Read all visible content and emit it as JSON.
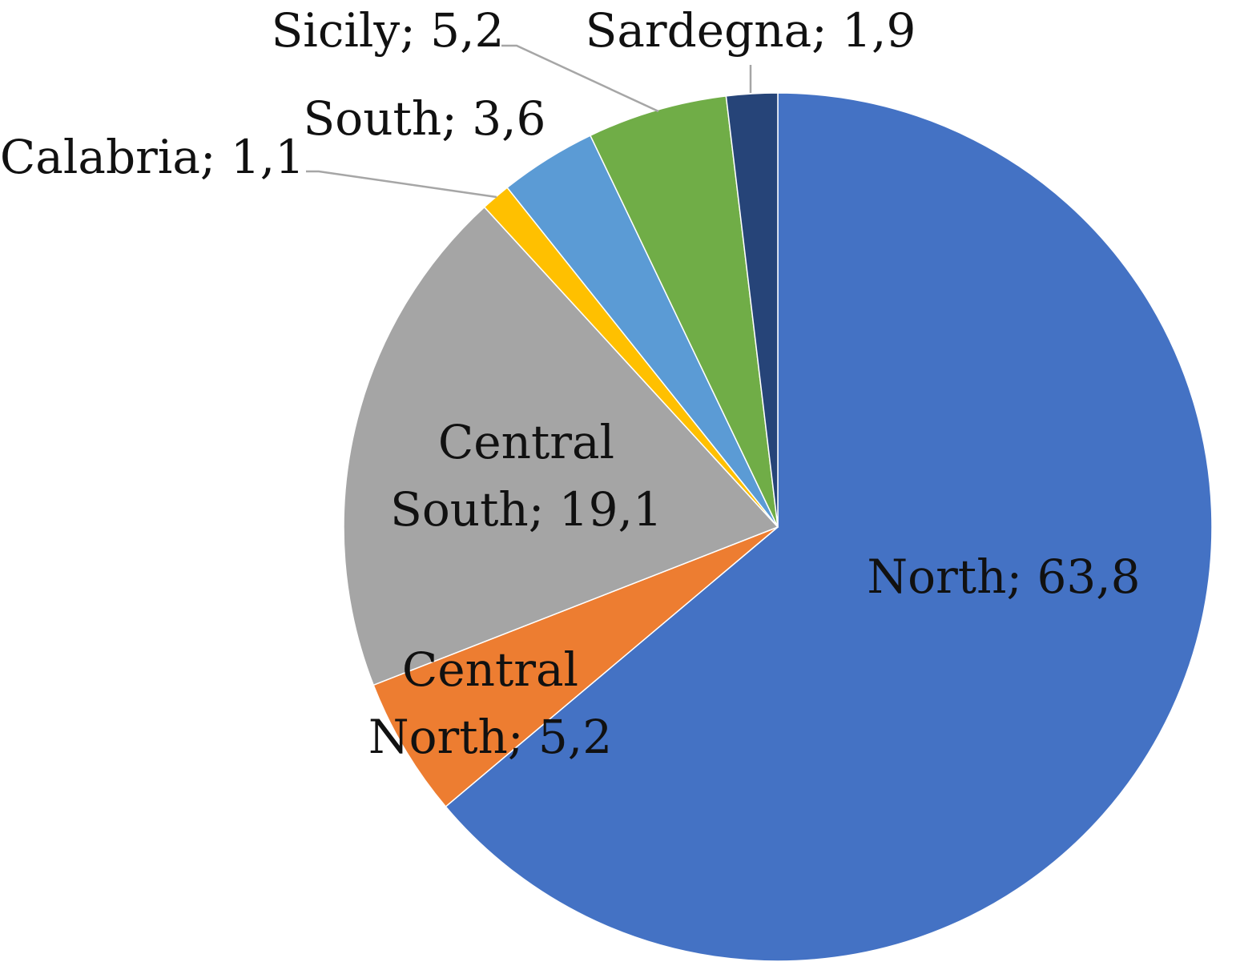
{
  "chart_data": {
    "type": "pie",
    "start_angle_deg": 0,
    "direction": "clockwise",
    "label_separator": "; ",
    "slices": [
      {
        "label": "North",
        "value_text": "63,8",
        "value": 63.8,
        "color": "#4472C4"
      },
      {
        "label": "Central North",
        "value_text": "5,2",
        "value": 5.2,
        "color": "#ED7D31"
      },
      {
        "label": "Central South",
        "value_text": "19,1",
        "value": 19.1,
        "color": "#A5A5A5"
      },
      {
        "label": "Calabria",
        "value_text": "1,1",
        "value": 1.1,
        "color": "#FFC000"
      },
      {
        "label": "South",
        "value_text": "3,6",
        "value": 3.6,
        "color": "#5B9BD5"
      },
      {
        "label": "Sicily",
        "value_text": "5,2",
        "value": 5.2,
        "color": "#70AD47"
      },
      {
        "label": "Sardegna",
        "value_text": "1,9",
        "value": 1.9,
        "color": "#264478"
      }
    ]
  }
}
